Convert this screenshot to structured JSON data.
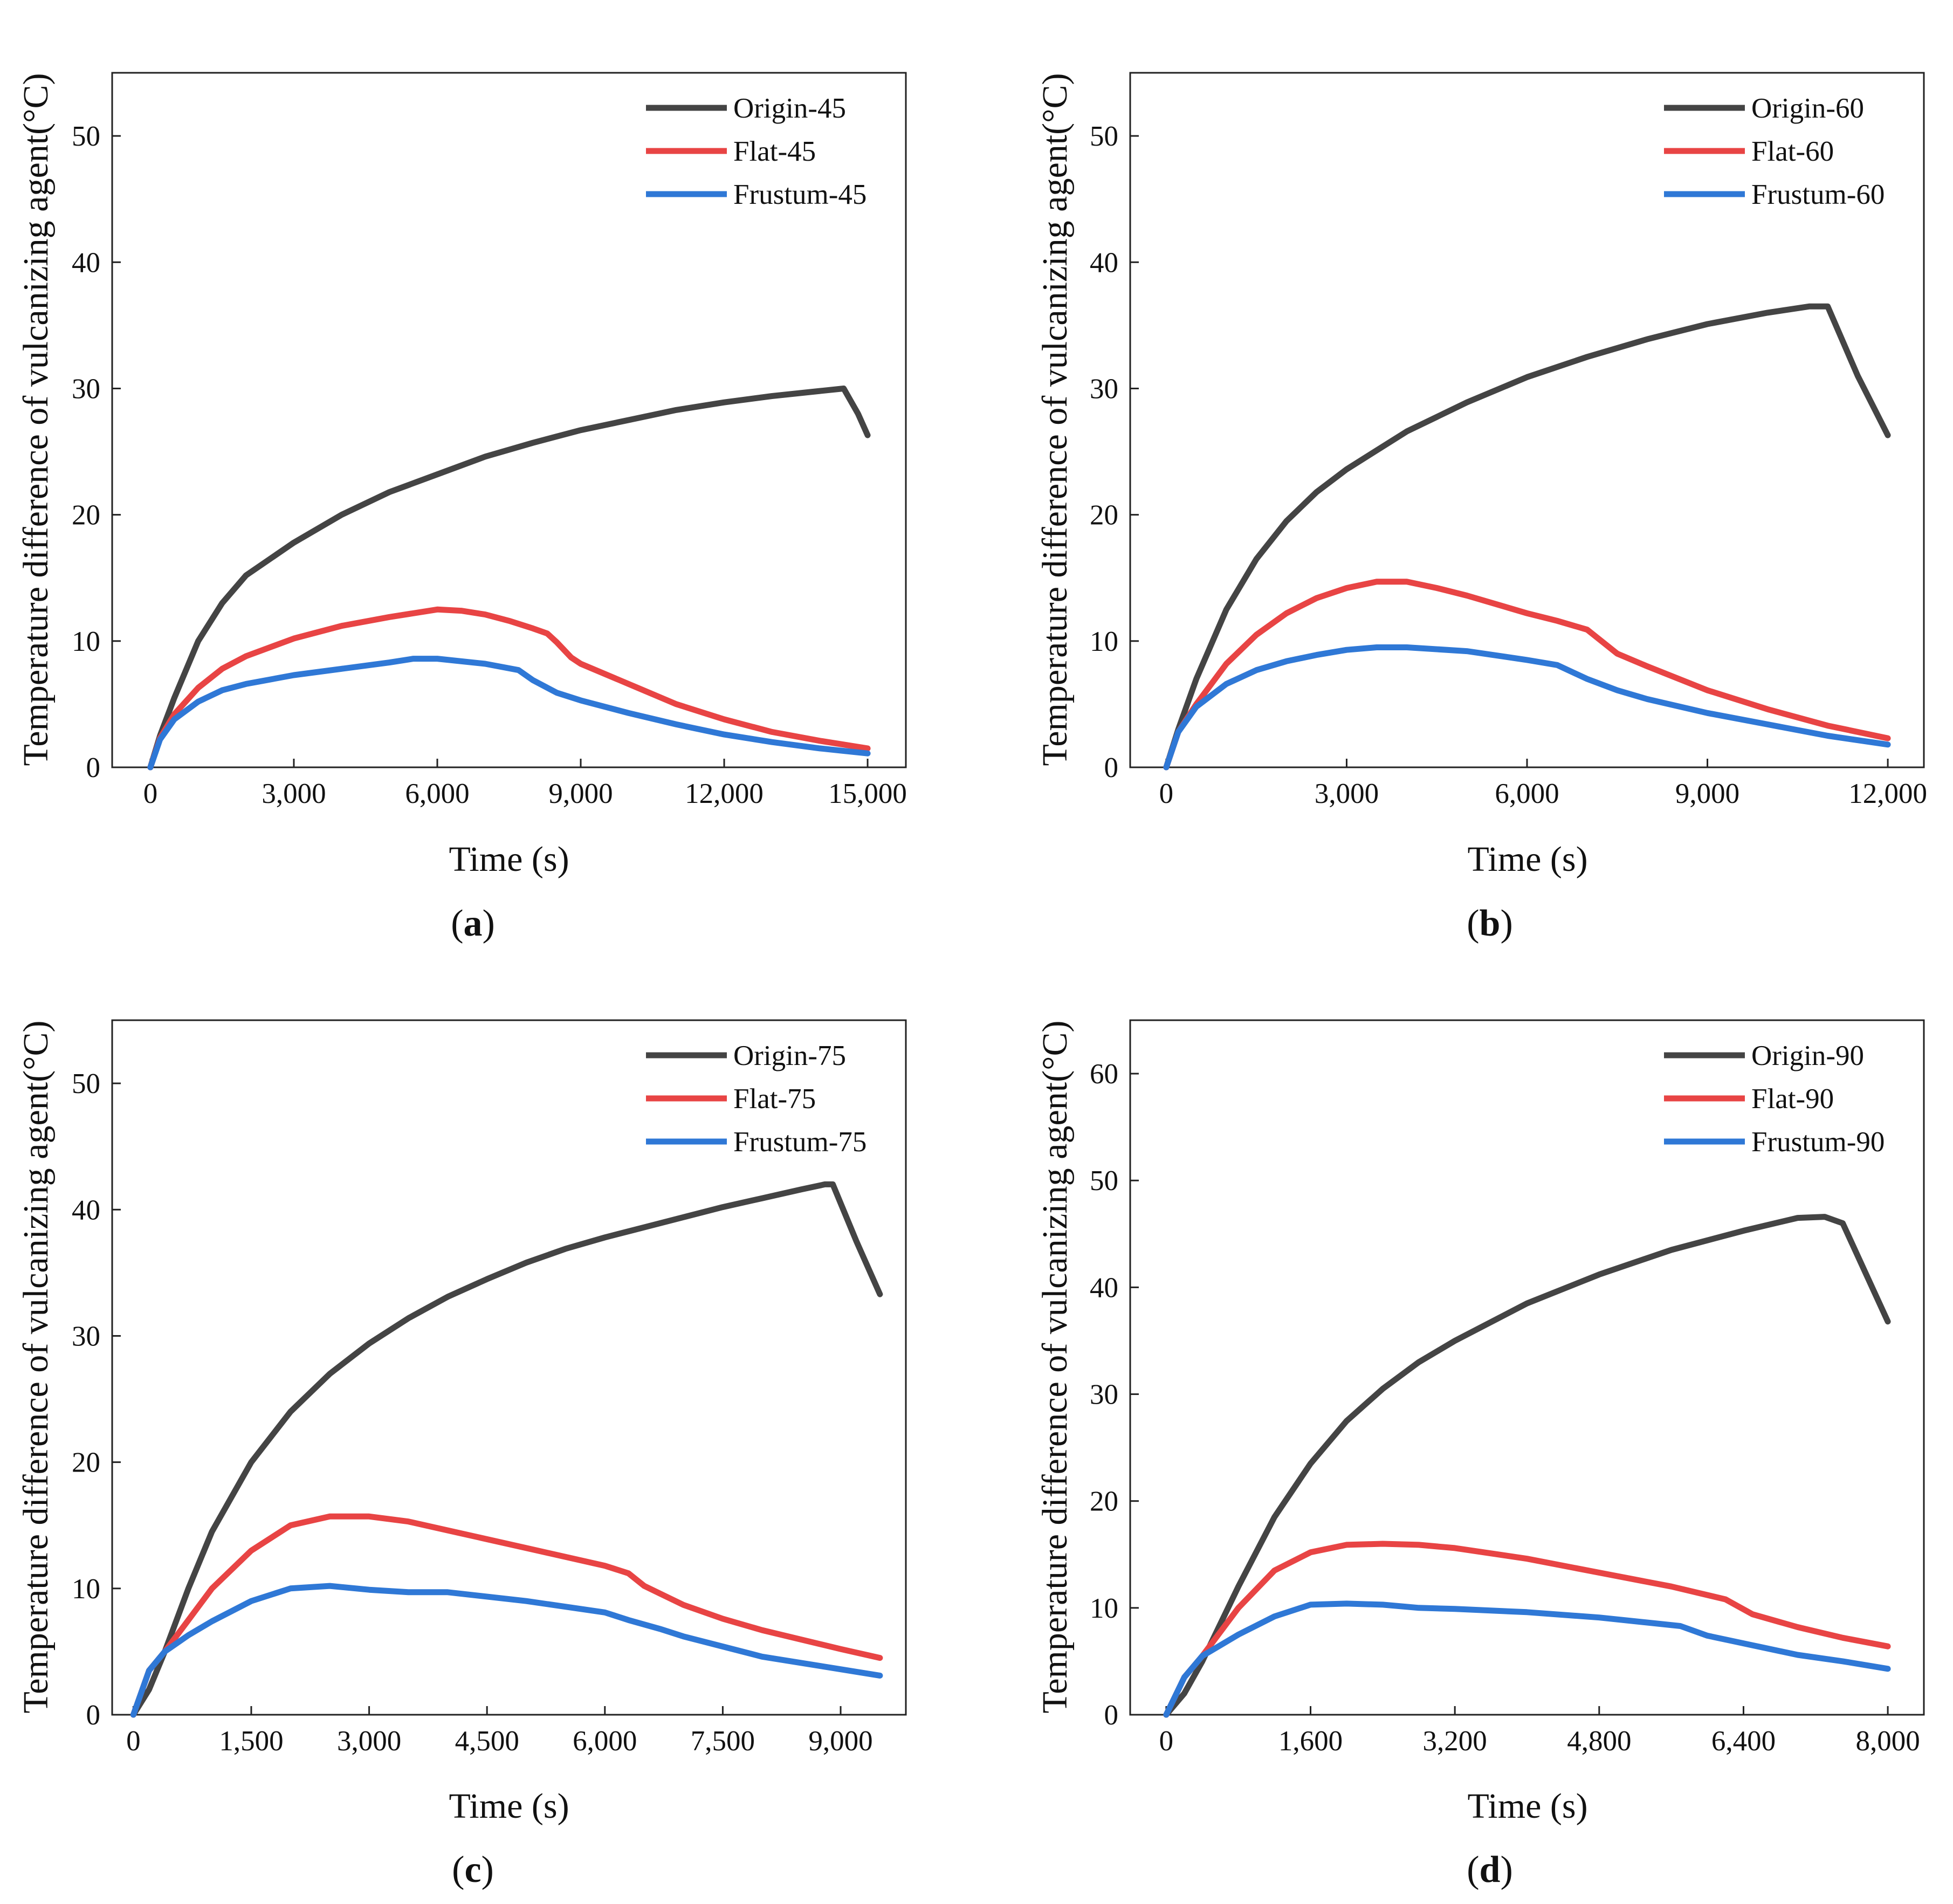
{
  "figure": {
    "panels": [
      {
        "label_open": "(",
        "label_letter": "a",
        "label_close": ")"
      },
      {
        "label_open": "(",
        "label_letter": "b",
        "label_close": ")"
      },
      {
        "label_open": "(",
        "label_letter": "c",
        "label_close": ")"
      },
      {
        "label_open": "(",
        "label_letter": "d",
        "label_close": ")"
      }
    ]
  },
  "chart_data": [
    {
      "type": "line",
      "panel": "a",
      "title": "",
      "xlabel": "Time (s)",
      "ylabel": "Temperature difference of  vulcanizing agent(°C)",
      "xlim": [
        -800,
        15800
      ],
      "ylim": [
        0,
        55
      ],
      "xticks": [
        0,
        3000,
        6000,
        9000,
        12000,
        15000
      ],
      "xtick_labels": [
        "0",
        "3,000",
        "6,000",
        "9,000",
        "12,000",
        "15,000"
      ],
      "yticks": [
        0,
        10,
        20,
        30,
        40,
        50
      ],
      "ytick_labels": [
        "0",
        "10",
        "20",
        "30",
        "40",
        "50"
      ],
      "legend_position": "top-right",
      "series": [
        {
          "name": "Origin-45",
          "color": "#444444",
          "x": [
            0,
            200,
            500,
            1000,
            1500,
            2000,
            3000,
            4000,
            5000,
            6000,
            7000,
            8000,
            9000,
            10000,
            11000,
            12000,
            13000,
            14000,
            14500,
            14800,
            15000
          ],
          "y": [
            0,
            2.5,
            5.5,
            10,
            13,
            15.2,
            17.8,
            20,
            21.8,
            23.2,
            24.6,
            25.7,
            26.7,
            27.5,
            28.3,
            28.9,
            29.4,
            29.8,
            30,
            28,
            26.3
          ]
        },
        {
          "name": "Flat-45",
          "color": "#e84444",
          "x": [
            0,
            200,
            500,
            1000,
            1500,
            2000,
            3000,
            4000,
            5000,
            6000,
            6500,
            7000,
            7500,
            8000,
            8300,
            8500,
            8800,
            9000,
            10000,
            11000,
            12000,
            13000,
            14000,
            15000
          ],
          "y": [
            0,
            2.3,
            4.2,
            6.3,
            7.8,
            8.8,
            10.2,
            11.2,
            11.9,
            12.5,
            12.4,
            12.1,
            11.6,
            11,
            10.6,
            9.9,
            8.7,
            8.2,
            6.6,
            5,
            3.8,
            2.8,
            2.1,
            1.5
          ]
        },
        {
          "name": "Frustum-45",
          "color": "#2f78d6",
          "x": [
            0,
            200,
            500,
            1000,
            1500,
            2000,
            3000,
            4000,
            5000,
            5500,
            6000,
            7000,
            7700,
            8000,
            8500,
            9000,
            10000,
            11000,
            12000,
            13000,
            14000,
            15000
          ],
          "y": [
            0,
            2.2,
            3.8,
            5.2,
            6.1,
            6.6,
            7.3,
            7.8,
            8.3,
            8.6,
            8.6,
            8.2,
            7.7,
            6.9,
            5.9,
            5.3,
            4.3,
            3.4,
            2.6,
            2,
            1.5,
            1.1
          ]
        }
      ]
    },
    {
      "type": "line",
      "panel": "b",
      "title": "",
      "xlabel": "Time (s)",
      "ylabel": "Temperature difference of  vulcanizing agent(°C)",
      "xlim": [
        -600,
        12600
      ],
      "ylim": [
        0,
        55
      ],
      "xticks": [
        0,
        3000,
        6000,
        9000,
        12000
      ],
      "xtick_labels": [
        "0",
        "3,000",
        "6,000",
        "9,000",
        "12,000"
      ],
      "yticks": [
        0,
        10,
        20,
        30,
        40,
        50
      ],
      "ytick_labels": [
        "0",
        "10",
        "20",
        "30",
        "40",
        "50"
      ],
      "legend_position": "top-right",
      "series": [
        {
          "name": "Origin-60",
          "color": "#444444",
          "x": [
            0,
            200,
            500,
            1000,
            1500,
            2000,
            2500,
            3000,
            4000,
            5000,
            6000,
            7000,
            8000,
            9000,
            10000,
            10700,
            11000,
            11500,
            12000
          ],
          "y": [
            0,
            3,
            7,
            12.5,
            16.5,
            19.5,
            21.8,
            23.6,
            26.6,
            28.9,
            30.9,
            32.5,
            33.9,
            35.1,
            36,
            36.5,
            36.5,
            31,
            26.3
          ]
        },
        {
          "name": "Flat-60",
          "color": "#e84444",
          "x": [
            0,
            200,
            500,
            1000,
            1500,
            2000,
            2500,
            3000,
            3500,
            4000,
            4500,
            5000,
            6000,
            6500,
            7000,
            7500,
            8000,
            9000,
            10000,
            11000,
            12000
          ],
          "y": [
            0,
            2.8,
            5,
            8.2,
            10.5,
            12.2,
            13.4,
            14.2,
            14.7,
            14.7,
            14.2,
            13.6,
            12.2,
            11.6,
            10.9,
            9,
            8,
            6.1,
            4.6,
            3.3,
            2.3
          ]
        },
        {
          "name": "Frustum-60",
          "color": "#2f78d6",
          "x": [
            0,
            200,
            500,
            1000,
            1500,
            2000,
            2500,
            3000,
            3500,
            4000,
            5000,
            6000,
            6500,
            7000,
            7500,
            8000,
            9000,
            10000,
            11000,
            12000
          ],
          "y": [
            0,
            2.8,
            4.8,
            6.6,
            7.7,
            8.4,
            8.9,
            9.3,
            9.5,
            9.5,
            9.2,
            8.5,
            8.1,
            7,
            6.1,
            5.4,
            4.3,
            3.4,
            2.5,
            1.8
          ]
        }
      ]
    },
    {
      "type": "line",
      "panel": "c",
      "title": "",
      "xlabel": "Time (s)",
      "ylabel": "Temperature difference of  vulcanizing agent(°C)",
      "xlim": [
        -270,
        9830
      ],
      "ylim": [
        0,
        55
      ],
      "xticks": [
        0,
        1500,
        3000,
        4500,
        6000,
        7500,
        9000
      ],
      "xtick_labels": [
        "0",
        "1,500",
        "3,000",
        "4,500",
        "6,000",
        "7,500",
        "9,000"
      ],
      "yticks": [
        0,
        10,
        20,
        30,
        40,
        50
      ],
      "ytick_labels": [
        "0",
        "10",
        "20",
        "30",
        "40",
        "50"
      ],
      "legend_position": "top-right",
      "series": [
        {
          "name": "Origin-75",
          "color": "#444444",
          "x": [
            0,
            200,
            400,
            700,
            1000,
            1500,
            2000,
            2500,
            3000,
            3500,
            4000,
            4500,
            5000,
            5500,
            6000,
            6500,
            7000,
            7500,
            8000,
            8500,
            8800,
            8900,
            9200,
            9500
          ],
          "y": [
            0,
            2,
            5,
            10,
            14.5,
            20,
            24,
            27,
            29.4,
            31.4,
            33.1,
            34.5,
            35.8,
            36.9,
            37.8,
            38.6,
            39.4,
            40.2,
            40.9,
            41.6,
            42,
            42,
            37.5,
            33.3
          ]
        },
        {
          "name": "Flat-75",
          "color": "#e84444",
          "x": [
            0,
            200,
            400,
            700,
            1000,
            1500,
            2000,
            2500,
            3000,
            3500,
            4000,
            5000,
            6000,
            6300,
            6500,
            6700,
            7000,
            7500,
            8000,
            9000,
            9500
          ],
          "y": [
            0,
            3.5,
            5,
            7.5,
            10,
            13,
            15,
            15.7,
            15.7,
            15.3,
            14.6,
            13.2,
            11.8,
            11.2,
            10.2,
            9.6,
            8.7,
            7.6,
            6.7,
            5.2,
            4.5
          ]
        },
        {
          "name": "Frustum-75",
          "color": "#2f78d6",
          "x": [
            0,
            200,
            400,
            700,
            1000,
            1500,
            2000,
            2500,
            3000,
            3500,
            4000,
            5000,
            6000,
            6300,
            6700,
            7000,
            7500,
            8000,
            9000,
            9500
          ],
          "y": [
            0,
            3.5,
            5,
            6.3,
            7.4,
            9,
            10,
            10.2,
            9.9,
            9.7,
            9.7,
            9,
            8.1,
            7.5,
            6.8,
            6.2,
            5.4,
            4.6,
            3.6,
            3.1
          ]
        }
      ]
    },
    {
      "type": "line",
      "panel": "d",
      "title": "",
      "xlabel": "Time (s)",
      "ylabel": "Temperature difference of  vulcanizing agent(°C)",
      "xlim": [
        -400,
        8400
      ],
      "ylim": [
        0,
        65
      ],
      "xticks": [
        0,
        1600,
        3200,
        4800,
        6400,
        8000
      ],
      "xtick_labels": [
        "0",
        "1,600",
        "3,200",
        "4,800",
        "6,400",
        "8,000"
      ],
      "yticks": [
        0,
        10,
        20,
        30,
        40,
        50,
        60
      ],
      "ytick_labels": [
        "0",
        "10",
        "20",
        "30",
        "40",
        "50",
        "60"
      ],
      "legend_position": "top-right",
      "series": [
        {
          "name": "Origin-90",
          "color": "#444444",
          "x": [
            0,
            200,
            400,
            800,
            1200,
            1600,
            2000,
            2400,
            2800,
            3200,
            4000,
            4800,
            5600,
            6400,
            7000,
            7300,
            7500,
            8000
          ],
          "y": [
            0,
            2,
            5,
            12,
            18.5,
            23.5,
            27.5,
            30.5,
            33,
            35,
            38.5,
            41.2,
            43.5,
            45.3,
            46.5,
            46.6,
            46,
            36.8
          ]
        },
        {
          "name": "Flat-90",
          "color": "#e84444",
          "x": [
            0,
            200,
            400,
            800,
            1200,
            1600,
            2000,
            2400,
            2800,
            3200,
            4000,
            4800,
            5600,
            6200,
            6500,
            7000,
            7500,
            8000
          ],
          "y": [
            0,
            3.5,
            5.5,
            10,
            13.5,
            15.2,
            15.9,
            16,
            15.9,
            15.6,
            14.6,
            13.3,
            12,
            10.8,
            9.4,
            8.2,
            7.2,
            6.4
          ]
        },
        {
          "name": "Frustum-90",
          "color": "#2f78d6",
          "x": [
            0,
            200,
            400,
            800,
            1200,
            1600,
            2000,
            2400,
            2800,
            3200,
            4000,
            4800,
            5700,
            6000,
            6500,
            7000,
            7500,
            8000
          ],
          "y": [
            0,
            3.5,
            5.5,
            7.5,
            9.2,
            10.3,
            10.4,
            10.3,
            10,
            9.9,
            9.6,
            9.1,
            8.3,
            7.4,
            6.5,
            5.6,
            5,
            4.3
          ]
        }
      ]
    }
  ]
}
